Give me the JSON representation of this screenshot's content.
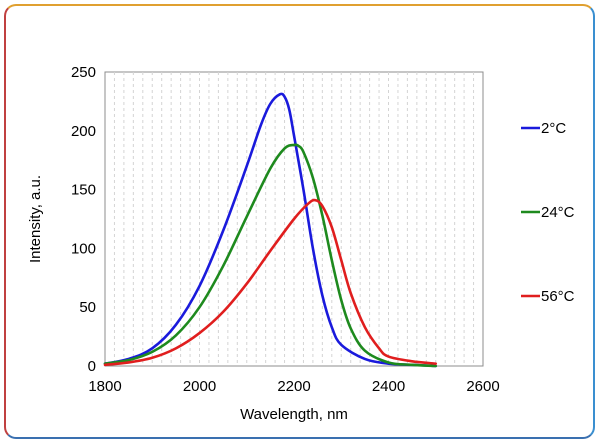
{
  "chart_data": {
    "type": "line",
    "title": "",
    "xlabel": "Wavelength, nm",
    "ylabel": "Intensity, a.u.",
    "xlim": [
      1800,
      2600
    ],
    "ylim": [
      0,
      250
    ],
    "xticks": [
      "1800",
      "2000",
      "2200",
      "2400",
      "2600"
    ],
    "yticks": [
      "0",
      "50",
      "100",
      "150",
      "200",
      "250"
    ],
    "grid": "vertical dashed minor lines",
    "legend_placement": "right",
    "series": [
      {
        "name": "2°C",
        "color": "#1a1adc",
        "x": [
          1800,
          1850,
          1900,
          1950,
          2000,
          2050,
          2100,
          2130,
          2150,
          2170,
          2180,
          2190,
          2200,
          2220,
          2240,
          2260,
          2280,
          2300,
          2350,
          2400,
          2450,
          2500
        ],
        "y": [
          2,
          6,
          15,
          35,
          68,
          115,
          170,
          205,
          223,
          231,
          229,
          218,
          196,
          150,
          100,
          60,
          33,
          18,
          6,
          2,
          1,
          0
        ]
      },
      {
        "name": "24°C",
        "color": "#1e8a1e",
        "x": [
          1800,
          1850,
          1900,
          1950,
          2000,
          2050,
          2100,
          2150,
          2180,
          2200,
          2210,
          2220,
          2240,
          2260,
          2280,
          2300,
          2320,
          2350,
          2400,
          2450,
          2500
        ],
        "y": [
          2,
          5,
          12,
          26,
          50,
          85,
          127,
          168,
          185,
          188,
          187,
          182,
          160,
          128,
          90,
          56,
          32,
          13,
          3,
          1,
          0
        ]
      },
      {
        "name": "56°C",
        "color": "#e01e1e",
        "x": [
          1800,
          1850,
          1900,
          1950,
          2000,
          2050,
          2100,
          2150,
          2200,
          2230,
          2245,
          2260,
          2280,
          2300,
          2320,
          2350,
          2380,
          2400,
          2450,
          2500
        ],
        "y": [
          1,
          3,
          7,
          15,
          28,
          46,
          70,
          98,
          125,
          138,
          141,
          136,
          118,
          90,
          62,
          33,
          15,
          8,
          4,
          2
        ]
      }
    ]
  }
}
